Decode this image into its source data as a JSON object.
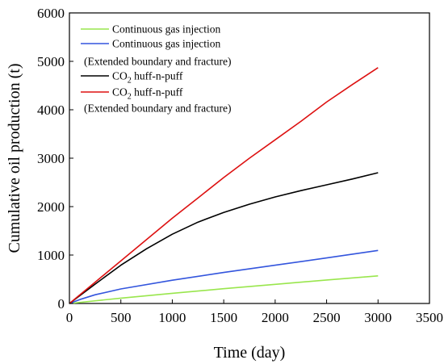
{
  "chart_data": {
    "type": "line",
    "title": "",
    "xlabel": "Time (day)",
    "ylabel": "Cumulative oil production (t)",
    "xlim": [
      0,
      3500
    ],
    "ylim": [
      0,
      6000
    ],
    "xticks": [
      "0",
      "500",
      "1000",
      "1500",
      "2000",
      "2500",
      "3000",
      "3500"
    ],
    "yticks": [
      "0",
      "1000",
      "2000",
      "3000",
      "4000",
      "5000",
      "6000"
    ],
    "grid": false,
    "legend_position": "top-left",
    "series": [
      {
        "name": "Continuous gas injection",
        "color": "#99e64d",
        "x": [
          0,
          500,
          1000,
          1500,
          2000,
          2500,
          3000
        ],
        "y": [
          0,
          110,
          210,
          305,
          395,
          485,
          570
        ]
      },
      {
        "name": "Continuous gas injection",
        "name_line2": "(Extended boundary and fracture)",
        "color": "#3355dd",
        "x": [
          0,
          100,
          250,
          500,
          1000,
          1500,
          2000,
          2500,
          3000
        ],
        "y": [
          0,
          80,
          180,
          300,
          480,
          640,
          790,
          940,
          1095
        ]
      },
      {
        "name": "CO2 huff-n-puff",
        "name_prefix": "CO",
        "name_sub": "2",
        "name_suffix": " huff-n-puff",
        "color": "#000000",
        "x": [
          0,
          250,
          500,
          750,
          1000,
          1250,
          1500,
          1750,
          2000,
          2250,
          2500,
          2750,
          3000
        ],
        "y": [
          0,
          400,
          790,
          1130,
          1430,
          1680,
          1880,
          2050,
          2200,
          2330,
          2450,
          2570,
          2700
        ]
      },
      {
        "name": "CO2 huff-n-puff",
        "name_prefix": "CO",
        "name_sub": "2",
        "name_suffix": " huff-n-puff",
        "name_line2": "(Extended boundary and fracture)",
        "color": "#dd1111",
        "x": [
          0,
          250,
          500,
          750,
          1000,
          1250,
          1500,
          1750,
          2000,
          2250,
          2500,
          2750,
          3000
        ],
        "y": [
          0,
          440,
          880,
          1320,
          1760,
          2180,
          2600,
          3000,
          3380,
          3760,
          4160,
          4520,
          4870
        ]
      }
    ]
  }
}
